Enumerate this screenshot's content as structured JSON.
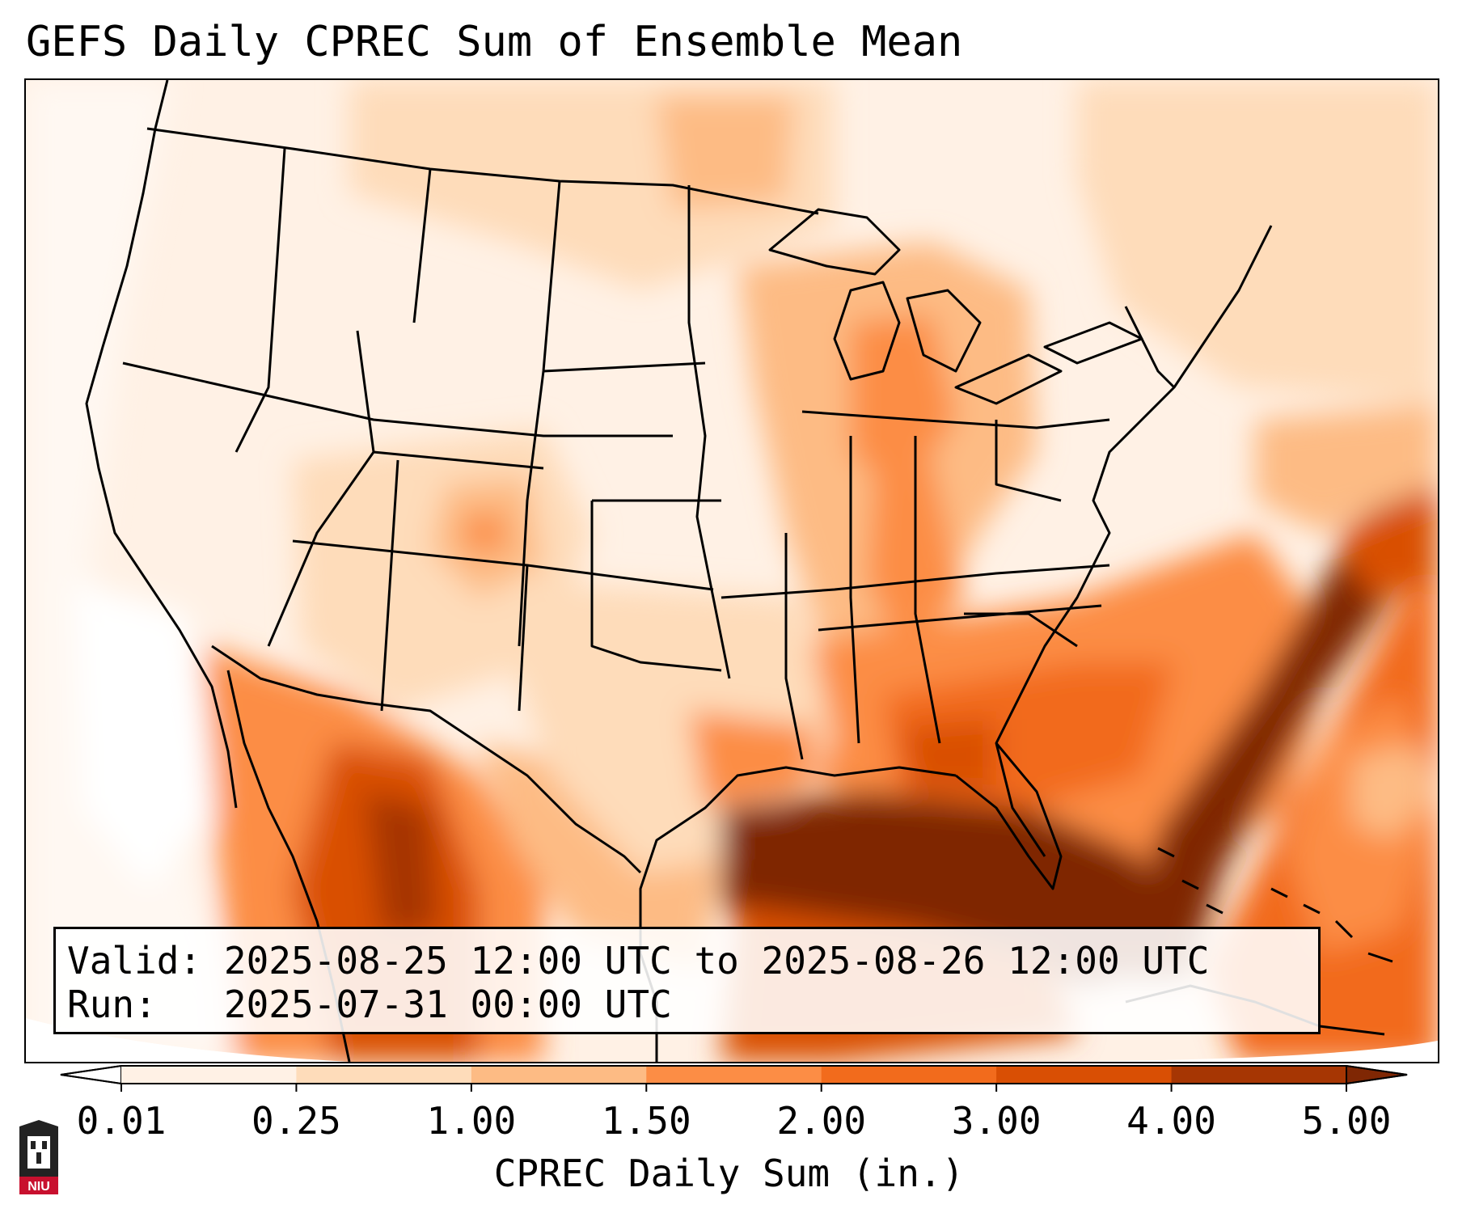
{
  "title": "GEFS Daily CPREC Sum of Ensemble Mean",
  "info": {
    "valid_label": "Valid:",
    "valid_value": "2025-08-25 12:00 UTC to 2025-08-26 12:00 UTC",
    "run_label": "Run:",
    "run_value": "2025-07-31 00:00 UTC"
  },
  "colorbar": {
    "label": "CPREC Daily Sum (in.)",
    "ticks": [
      "0.01",
      "0.25",
      "1.00",
      "1.50",
      "2.00",
      "3.00",
      "4.00",
      "5.00"
    ],
    "colors": [
      "#fff1e5",
      "#fedcba",
      "#fdbb84",
      "#fc8d45",
      "#f26b1c",
      "#d94f04",
      "#a63603"
    ],
    "under_color": "#ffffff",
    "over_color": "#7f2704",
    "extend": "both"
  },
  "logo": {
    "text": "NIU",
    "colors": {
      "red": "#c8102e",
      "dark": "#222222"
    }
  },
  "map": {
    "region": "Contiguous United States with southern Canada, Mexico, Gulf of Mexico and Caribbean",
    "land_outline_color": "#000000"
  }
}
